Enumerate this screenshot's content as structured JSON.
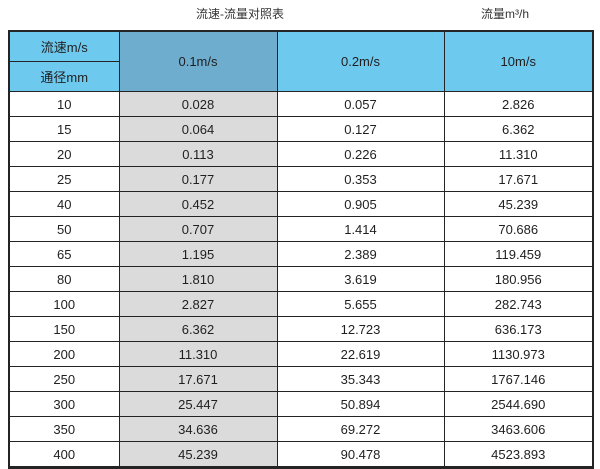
{
  "titles": {
    "main": "流速-流量对照表",
    "unit": "流量m³/h"
  },
  "table": {
    "corner_top": "流速m/s",
    "corner_bottom": "通径mm",
    "columns": [
      "0.1m/s",
      "0.2m/s",
      "10m/s"
    ],
    "rows": [
      [
        "10",
        "0.028",
        "0.057",
        "2.826"
      ],
      [
        "15",
        "0.064",
        "0.127",
        "6.362"
      ],
      [
        "20",
        "0.113",
        "0.226",
        "11.310"
      ],
      [
        "25",
        "0.177",
        "0.353",
        "17.671"
      ],
      [
        "40",
        "0.452",
        "0.905",
        "45.239"
      ],
      [
        "50",
        "0.707",
        "1.414",
        "70.686"
      ],
      [
        "65",
        "1.195",
        "2.389",
        "119.459"
      ],
      [
        "80",
        "1.810",
        "3.619",
        "180.956"
      ],
      [
        "100",
        "2.827",
        "5.655",
        "282.743"
      ],
      [
        "150",
        "6.362",
        "12.723",
        "636.173"
      ],
      [
        "200",
        "11.310",
        "22.619",
        "1130.973"
      ],
      [
        "250",
        "17.671",
        "35.343",
        "1767.146"
      ],
      [
        "300",
        "25.447",
        "50.894",
        "2544.690"
      ],
      [
        "350",
        "34.636",
        "69.272",
        "3463.606"
      ],
      [
        "400",
        "45.239",
        "90.478",
        "4523.893"
      ]
    ]
  },
  "colors": {
    "header_light_blue": "#6ec9ef",
    "header_dark_blue": "#6fadcf",
    "highlight_column_gray": "#dbdbdb",
    "border": "#242424",
    "text": "#1f1f1f"
  },
  "chart_data": {
    "type": "table",
    "title": "流速-流量对照表",
    "unit_label": "流量m³/h",
    "row_header": "通径mm",
    "column_header": "流速m/s",
    "columns": [
      "0.1m/s",
      "0.2m/s",
      "10m/s"
    ],
    "diameters_mm": [
      10,
      15,
      20,
      25,
      40,
      50,
      65,
      80,
      100,
      150,
      200,
      250,
      300,
      350,
      400
    ],
    "values_m3_per_h": [
      [
        0.028,
        0.057,
        2.826
      ],
      [
        0.064,
        0.127,
        6.362
      ],
      [
        0.113,
        0.226,
        11.31
      ],
      [
        0.177,
        0.353,
        17.671
      ],
      [
        0.452,
        0.905,
        45.239
      ],
      [
        0.707,
        1.414,
        70.686
      ],
      [
        1.195,
        2.389,
        119.459
      ],
      [
        1.81,
        3.619,
        180.956
      ],
      [
        2.827,
        5.655,
        282.743
      ],
      [
        6.362,
        12.723,
        636.173
      ],
      [
        11.31,
        22.619,
        1130.973
      ],
      [
        17.671,
        35.343,
        1767.146
      ],
      [
        25.447,
        50.894,
        2544.69
      ],
      [
        34.636,
        69.272,
        3463.606
      ],
      [
        45.239,
        90.478,
        4523.893
      ]
    ]
  }
}
